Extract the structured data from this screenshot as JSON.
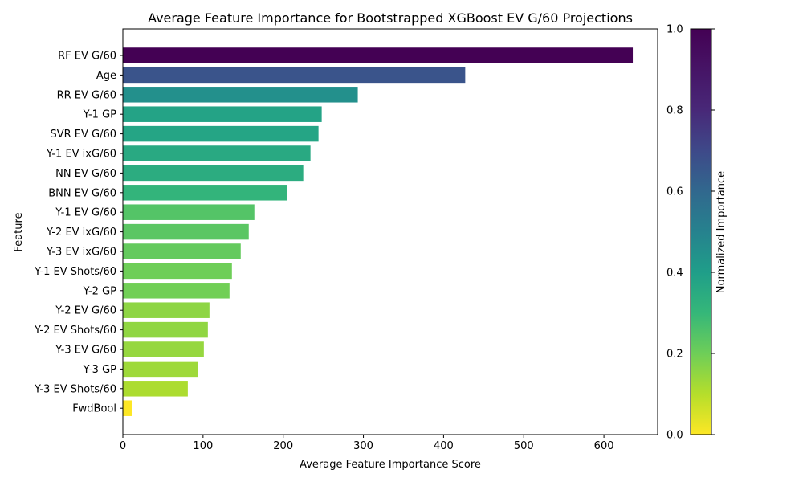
{
  "chart_data": {
    "type": "bar",
    "orientation": "horizontal",
    "title": "Average Feature Importance for Bootstrapped XGBoost EV G/60 Projections",
    "xlabel": "Average Feature Importance Score",
    "ylabel": "Feature",
    "xlim": [
      0,
      667
    ],
    "xticks": [
      0,
      100,
      200,
      300,
      400,
      500,
      600
    ],
    "categories": [
      "RF EV G/60",
      "Age",
      "RR EV G/60",
      "Y-1 GP",
      "SVR EV G/60",
      "Y-1 EV ixG/60",
      "NN EV G/60",
      "BNN EV G/60",
      "Y-1 EV G/60",
      "Y-2 EV ixG/60",
      "Y-3 EV ixG/60",
      "Y-1 EV Shots/60",
      "Y-2 GP",
      "Y-2 EV G/60",
      "Y-2 EV Shots/60",
      "Y-3 EV G/60",
      "Y-3 GP",
      "Y-3 EV Shots/60",
      "FwdBool"
    ],
    "values": [
      636,
      427,
      293,
      248,
      244,
      234,
      225,
      205,
      164,
      157,
      147,
      136,
      133,
      108,
      106,
      101,
      94,
      81,
      11
    ],
    "colormap": "viridis_r",
    "colorbar": {
      "label": "Normalized Importance",
      "ticks": [
        "0.0",
        "0.2",
        "0.4",
        "0.6",
        "0.8",
        "1.0"
      ]
    },
    "grid": false
  }
}
